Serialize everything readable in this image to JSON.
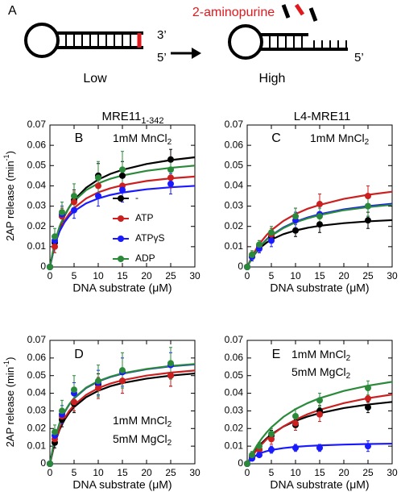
{
  "diagram": {
    "label": "A",
    "title": "2-aminopurine",
    "labels": [
      "3’",
      "5’",
      "Low",
      "High",
      "5’"
    ]
  },
  "chart_data": [
    {
      "type": "scatter",
      "panel": "B",
      "title": "MRE11",
      "title_sub": "1-342",
      "annotations": [
        {
          "text": "1mM MnCl",
          "sub": "2"
        }
      ],
      "ylabel": "2AP release (min",
      "ylabel_sup": "-1",
      "ylabel_end": ")",
      "xlabel": "DNA substrate (μM)",
      "xlim": [
        0,
        30
      ],
      "ylim": [
        0,
        0.07
      ],
      "xticks": [
        0,
        5,
        10,
        15,
        20,
        25,
        30
      ],
      "yticks": [
        0,
        0.01,
        0.02,
        0.03,
        0.04,
        0.05,
        0.06,
        0.07
      ],
      "legend": true,
      "x": [
        0,
        1,
        2.5,
        5,
        10,
        15,
        25
      ],
      "fit_x": [
        0,
        1,
        2,
        3,
        4,
        5,
        7.5,
        10,
        12.5,
        15,
        20,
        25,
        30
      ],
      "series": [
        {
          "name": "-",
          "color": "#000000",
          "values": [
            0,
            0.012,
            0.025,
            0.033,
            0.045,
            0.045,
            0.053
          ],
          "errors": [
            0,
            0.003,
            0.004,
            0.005,
            0.006,
            0.007,
            0.005
          ],
          "fit": [
            0,
            0.0115,
            0.0194,
            0.0251,
            0.0295,
            0.033,
            0.0391,
            0.0431,
            0.0459,
            0.0479,
            0.0508,
            0.0527,
            0.0541
          ]
        },
        {
          "name": "ATP",
          "color": "#cc2020",
          "values": [
            0,
            0.01,
            0.025,
            0.032,
            0.04,
            0.04,
            0.044
          ],
          "errors": [
            0,
            0.003,
            0.004,
            0.005,
            0.005,
            0.006,
            0.005
          ],
          "fit": [
            0,
            0.0109,
            0.0179,
            0.0227,
            0.0263,
            0.0291,
            0.0338,
            0.0368,
            0.0388,
            0.0403,
            0.0424,
            0.0437,
            0.0446
          ]
        },
        {
          "name": "ATPγS",
          "color": "#1a1aff",
          "values": [
            0,
            0.013,
            0.026,
            0.028,
            0.035,
            0.038,
            0.041
          ],
          "errors": [
            0,
            0.003,
            0.004,
            0.004,
            0.005,
            0.006,
            0.005
          ],
          "fit": [
            0,
            0.011,
            0.0176,
            0.022,
            0.0251,
            0.0275,
            0.0314,
            0.0338,
            0.0355,
            0.0367,
            0.0383,
            0.0393,
            0.04
          ]
        },
        {
          "name": "ADP",
          "color": "#2a8a3a",
          "values": [
            0,
            0.015,
            0.027,
            0.035,
            0.044,
            0.048,
            0.048
          ],
          "errors": [
            0,
            0.004,
            0.005,
            0.006,
            0.008,
            0.009,
            0.006
          ],
          "fit": [
            0,
            0.0122,
            0.02,
            0.0255,
            0.0295,
            0.0325,
            0.0379,
            0.0412,
            0.0435,
            0.0451,
            0.0474,
            0.0489,
            0.05
          ]
        }
      ]
    },
    {
      "type": "scatter",
      "panel": "C",
      "title": "L4-MRE11",
      "annotations": [
        {
          "text": "1mM MnCl",
          "sub": "2"
        }
      ],
      "xlabel": "DNA substrate (μM)",
      "xlim": [
        0,
        30
      ],
      "ylim": [
        0,
        0.07
      ],
      "xticks": [
        0,
        5,
        10,
        15,
        20,
        25,
        30
      ],
      "yticks": [
        0,
        0.01,
        0.02,
        0.03,
        0.04,
        0.05,
        0.06,
        0.07
      ],
      "legend": false,
      "x": [
        0,
        1,
        2.5,
        5,
        10,
        15,
        25
      ],
      "fit_x": [
        0,
        1,
        2,
        3,
        4,
        5,
        7.5,
        10,
        12.5,
        15,
        20,
        25,
        30
      ],
      "series": [
        {
          "color": "#000000",
          "values": [
            0,
            0.005,
            0.01,
            0.015,
            0.018,
            0.021,
            0.023
          ],
          "errors": [
            0,
            0.002,
            0.002,
            0.003,
            0.003,
            0.004,
            0.004
          ],
          "fit": [
            0,
            0.0045,
            0.0077,
            0.0101,
            0.012,
            0.0135,
            0.0162,
            0.018,
            0.0193,
            0.0203,
            0.0216,
            0.0225,
            0.0231
          ]
        },
        {
          "color": "#cc2020",
          "values": [
            0,
            0.006,
            0.01,
            0.016,
            0.025,
            0.031,
            0.035
          ],
          "errors": [
            0,
            0.002,
            0.003,
            0.003,
            0.004,
            0.005,
            0.005
          ],
          "fit": [
            0,
            0.0052,
            0.0094,
            0.0128,
            0.0157,
            0.0181,
            0.0227,
            0.0261,
            0.0287,
            0.0306,
            0.0336,
            0.0356,
            0.0371
          ]
        },
        {
          "color": "#1a1aff",
          "values": [
            0,
            0.005,
            0.009,
            0.013,
            0.023,
            0.026,
            0.03
          ],
          "errors": [
            0,
            0.002,
            0.002,
            0.003,
            0.004,
            0.004,
            0.005
          ],
          "fit": [
            0,
            0.0046,
            0.0082,
            0.0111,
            0.0136,
            0.0156,
            0.0195,
            0.0223,
            0.0244,
            0.026,
            0.0284,
            0.03,
            0.0312
          ]
        },
        {
          "color": "#2a8a3a",
          "values": [
            0,
            0.006,
            0.011,
            0.017,
            0.025,
            0.025,
            0.03
          ],
          "errors": [
            0,
            0.002,
            0.002,
            0.003,
            0.004,
            0.004,
            0.005
          ],
          "fit": [
            0,
            0.0045,
            0.0081,
            0.011,
            0.0134,
            0.0154,
            0.0192,
            0.022,
            0.024,
            0.0256,
            0.028,
            0.0295,
            0.0307
          ]
        }
      ]
    },
    {
      "type": "scatter",
      "panel": "D",
      "annotations": [
        {
          "text": "1mM MnCl",
          "sub": "2"
        },
        {
          "text": "5mM MgCl",
          "sub": "2"
        }
      ],
      "ylabel": "2AP release (min",
      "ylabel_sup": "-1",
      "ylabel_end": ")",
      "xlabel": "DNA substrate (μM)",
      "xlim": [
        0,
        30
      ],
      "ylim": [
        0,
        0.07
      ],
      "xticks": [
        0,
        5,
        10,
        15,
        20,
        25,
        30
      ],
      "yticks": [
        0,
        0.01,
        0.02,
        0.03,
        0.04,
        0.05,
        0.06,
        0.07
      ],
      "legend": false,
      "x": [
        0,
        1,
        2.5,
        5,
        10,
        15,
        25
      ],
      "fit_x": [
        0,
        1,
        2,
        3,
        4,
        5,
        7.5,
        10,
        12.5,
        15,
        20,
        25,
        30
      ],
      "series": [
        {
          "color": "#000000",
          "values": [
            0,
            0.012,
            0.025,
            0.034,
            0.045,
            0.047,
            0.05
          ],
          "errors": [
            0,
            0.003,
            0.004,
            0.005,
            0.006,
            0.007,
            0.006
          ],
          "fit": [
            0,
            0.0116,
            0.0193,
            0.0249,
            0.029,
            0.0322,
            0.0378,
            0.0414,
            0.044,
            0.0458,
            0.0483,
            0.05,
            0.0512
          ]
        },
        {
          "color": "#cc2020",
          "values": [
            0,
            0.014,
            0.027,
            0.035,
            0.043,
            0.047,
            0.05
          ],
          "errors": [
            0,
            0.003,
            0.004,
            0.005,
            0.006,
            0.007,
            0.006
          ],
          "fit": [
            0,
            0.012,
            0.02,
            0.0257,
            0.03,
            0.0333,
            0.0391,
            0.0429,
            0.0455,
            0.0474,
            0.05,
            0.0517,
            0.0529
          ]
        },
        {
          "color": "#1a1aff",
          "values": [
            0,
            0.016,
            0.028,
            0.04,
            0.046,
            0.052,
            0.056
          ],
          "errors": [
            0,
            0.003,
            0.005,
            0.006,
            0.007,
            0.008,
            0.007
          ],
          "fit": [
            0,
            0.014,
            0.0229,
            0.0291,
            0.0336,
            0.0371,
            0.043,
            0.0467,
            0.0492,
            0.0511,
            0.0536,
            0.0553,
            0.0564
          ]
        },
        {
          "color": "#2a8a3a",
          "values": [
            0,
            0.018,
            0.03,
            0.042,
            0.047,
            0.053,
            0.057
          ],
          "errors": [
            0,
            0.004,
            0.006,
            0.008,
            0.009,
            0.01,
            0.009
          ],
          "fit": [
            0,
            0.0142,
            0.0231,
            0.0293,
            0.0338,
            0.0373,
            0.0432,
            0.0469,
            0.0494,
            0.0513,
            0.0538,
            0.0555,
            0.0566
          ]
        }
      ]
    },
    {
      "type": "scatter",
      "panel": "E",
      "annotations": [
        {
          "text": "1mM MnCl",
          "sub": "2"
        },
        {
          "text": "5mM MgCl",
          "sub": "2"
        }
      ],
      "xlabel": "DNA substrate (μM)",
      "xlim": [
        0,
        30
      ],
      "ylim": [
        0,
        0.07
      ],
      "xticks": [
        0,
        5,
        10,
        15,
        20,
        25,
        30
      ],
      "yticks": [
        0,
        0.01,
        0.02,
        0.03,
        0.04,
        0.05,
        0.06,
        0.07
      ],
      "legend": false,
      "x": [
        0,
        1,
        2.5,
        5,
        10,
        15,
        25
      ],
      "fit_x": [
        0,
        1,
        2,
        3,
        4,
        5,
        7.5,
        10,
        12.5,
        15,
        20,
        25,
        30
      ],
      "series": [
        {
          "color": "#000000",
          "values": [
            0,
            0.004,
            0.008,
            0.016,
            0.022,
            0.03,
            0.032
          ],
          "errors": [
            0,
            0.001,
            0.002,
            0.003,
            0.003,
            0.003,
            0.003
          ],
          "fit": [
            0,
            0.0047,
            0.0086,
            0.0117,
            0.0144,
            0.0167,
            0.0211,
            0.0243,
            0.0268,
            0.0287,
            0.0316,
            0.0336,
            0.0351
          ]
        },
        {
          "color": "#cc2020",
          "values": [
            0,
            0.004,
            0.008,
            0.014,
            0.023,
            0.028,
            0.037
          ],
          "errors": [
            0,
            0.001,
            0.002,
            0.003,
            0.004,
            0.004,
            0.005
          ],
          "fit": [
            0,
            0.0042,
            0.0079,
            0.011,
            0.0138,
            0.0162,
            0.0212,
            0.025,
            0.0281,
            0.0306,
            0.0344,
            0.0372,
            0.0393
          ]
        },
        {
          "color": "#1a1aff",
          "values": [
            0,
            0.003,
            0.005,
            0.008,
            0.009,
            0.009,
            0.01
          ],
          "errors": [
            0,
            0.001,
            0.001,
            0.002,
            0.002,
            0.002,
            0.003
          ],
          "fit": [
            0,
            0.0031,
            0.005,
            0.0063,
            0.0071,
            0.0078,
            0.0089,
            0.0096,
            0.0101,
            0.0104,
            0.0109,
            0.0112,
            0.0114
          ]
        },
        {
          "color": "#2a8a3a",
          "values": [
            0,
            0.005,
            0.01,
            0.017,
            0.027,
            0.036,
            0.043
          ],
          "errors": [
            0,
            0.002,
            0.002,
            0.003,
            0.004,
            0.004,
            0.004
          ],
          "fit": [
            0,
            0.0056,
            0.0103,
            0.0143,
            0.0177,
            0.0207,
            0.0266,
            0.031,
            0.0344,
            0.0372,
            0.0413,
            0.0443,
            0.0465
          ]
        }
      ]
    }
  ]
}
